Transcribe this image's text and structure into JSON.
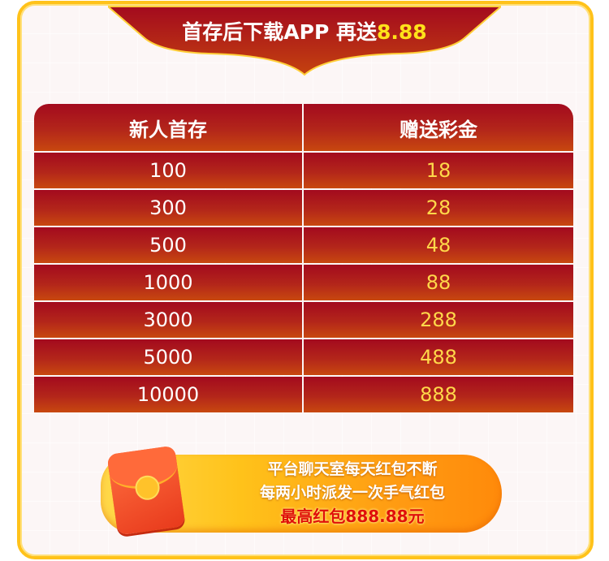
{
  "banner": {
    "title_prefix": "首存后下载APP 再送",
    "title_amount": "8.88"
  },
  "table": {
    "headers": [
      "新人首存",
      "赠送彩金"
    ],
    "rows": [
      [
        "100",
        "18"
      ],
      [
        "300",
        "28"
      ],
      [
        "500",
        "48"
      ],
      [
        "1000",
        "88"
      ],
      [
        "3000",
        "288"
      ],
      [
        "5000",
        "488"
      ],
      [
        "10000",
        "888"
      ]
    ]
  },
  "promo": {
    "icon": "red-envelope-icon",
    "line1": "平台聊天室每天红包不断",
    "line2": "每两小时派发一次手气红包",
    "line3": "最高红包888.88元"
  },
  "colors": {
    "frame": "#ffc21a",
    "table_red": "#a30a1e",
    "highlight": "#ffe21a",
    "bonus_text": "#ffd84a"
  }
}
